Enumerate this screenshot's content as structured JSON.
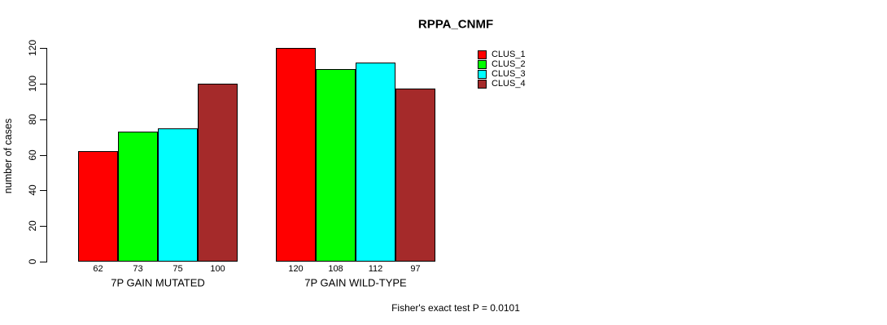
{
  "chart_data": {
    "type": "bar",
    "title": "RPPA_CNMF",
    "ylabel": "number of cases",
    "xlabel": "",
    "ylim": [
      0,
      120
    ],
    "yticks": [
      0,
      20,
      40,
      60,
      80,
      100,
      120
    ],
    "grid": false,
    "legend_position": "top-right",
    "categories": [
      "7P GAIN MUTATED",
      "7P GAIN WILD-TYPE"
    ],
    "series": [
      {
        "name": "CLUS_1",
        "color": "#FF0000",
        "values": [
          62,
          120
        ]
      },
      {
        "name": "CLUS_2",
        "color": "#00FF00",
        "values": [
          73,
          108
        ]
      },
      {
        "name": "CLUS_3",
        "color": "#00FFFF",
        "values": [
          75,
          112
        ]
      },
      {
        "name": "CLUS_4",
        "color": "#A52A2A",
        "values": [
          100,
          97
        ]
      }
    ],
    "bar_value_labels": {
      "7P GAIN MUTATED": [
        62,
        73,
        75,
        100
      ],
      "7P GAIN WILD-TYPE": [
        120,
        108,
        112,
        97
      ]
    },
    "footnote": "Fisher's exact test P = 0.0101"
  }
}
